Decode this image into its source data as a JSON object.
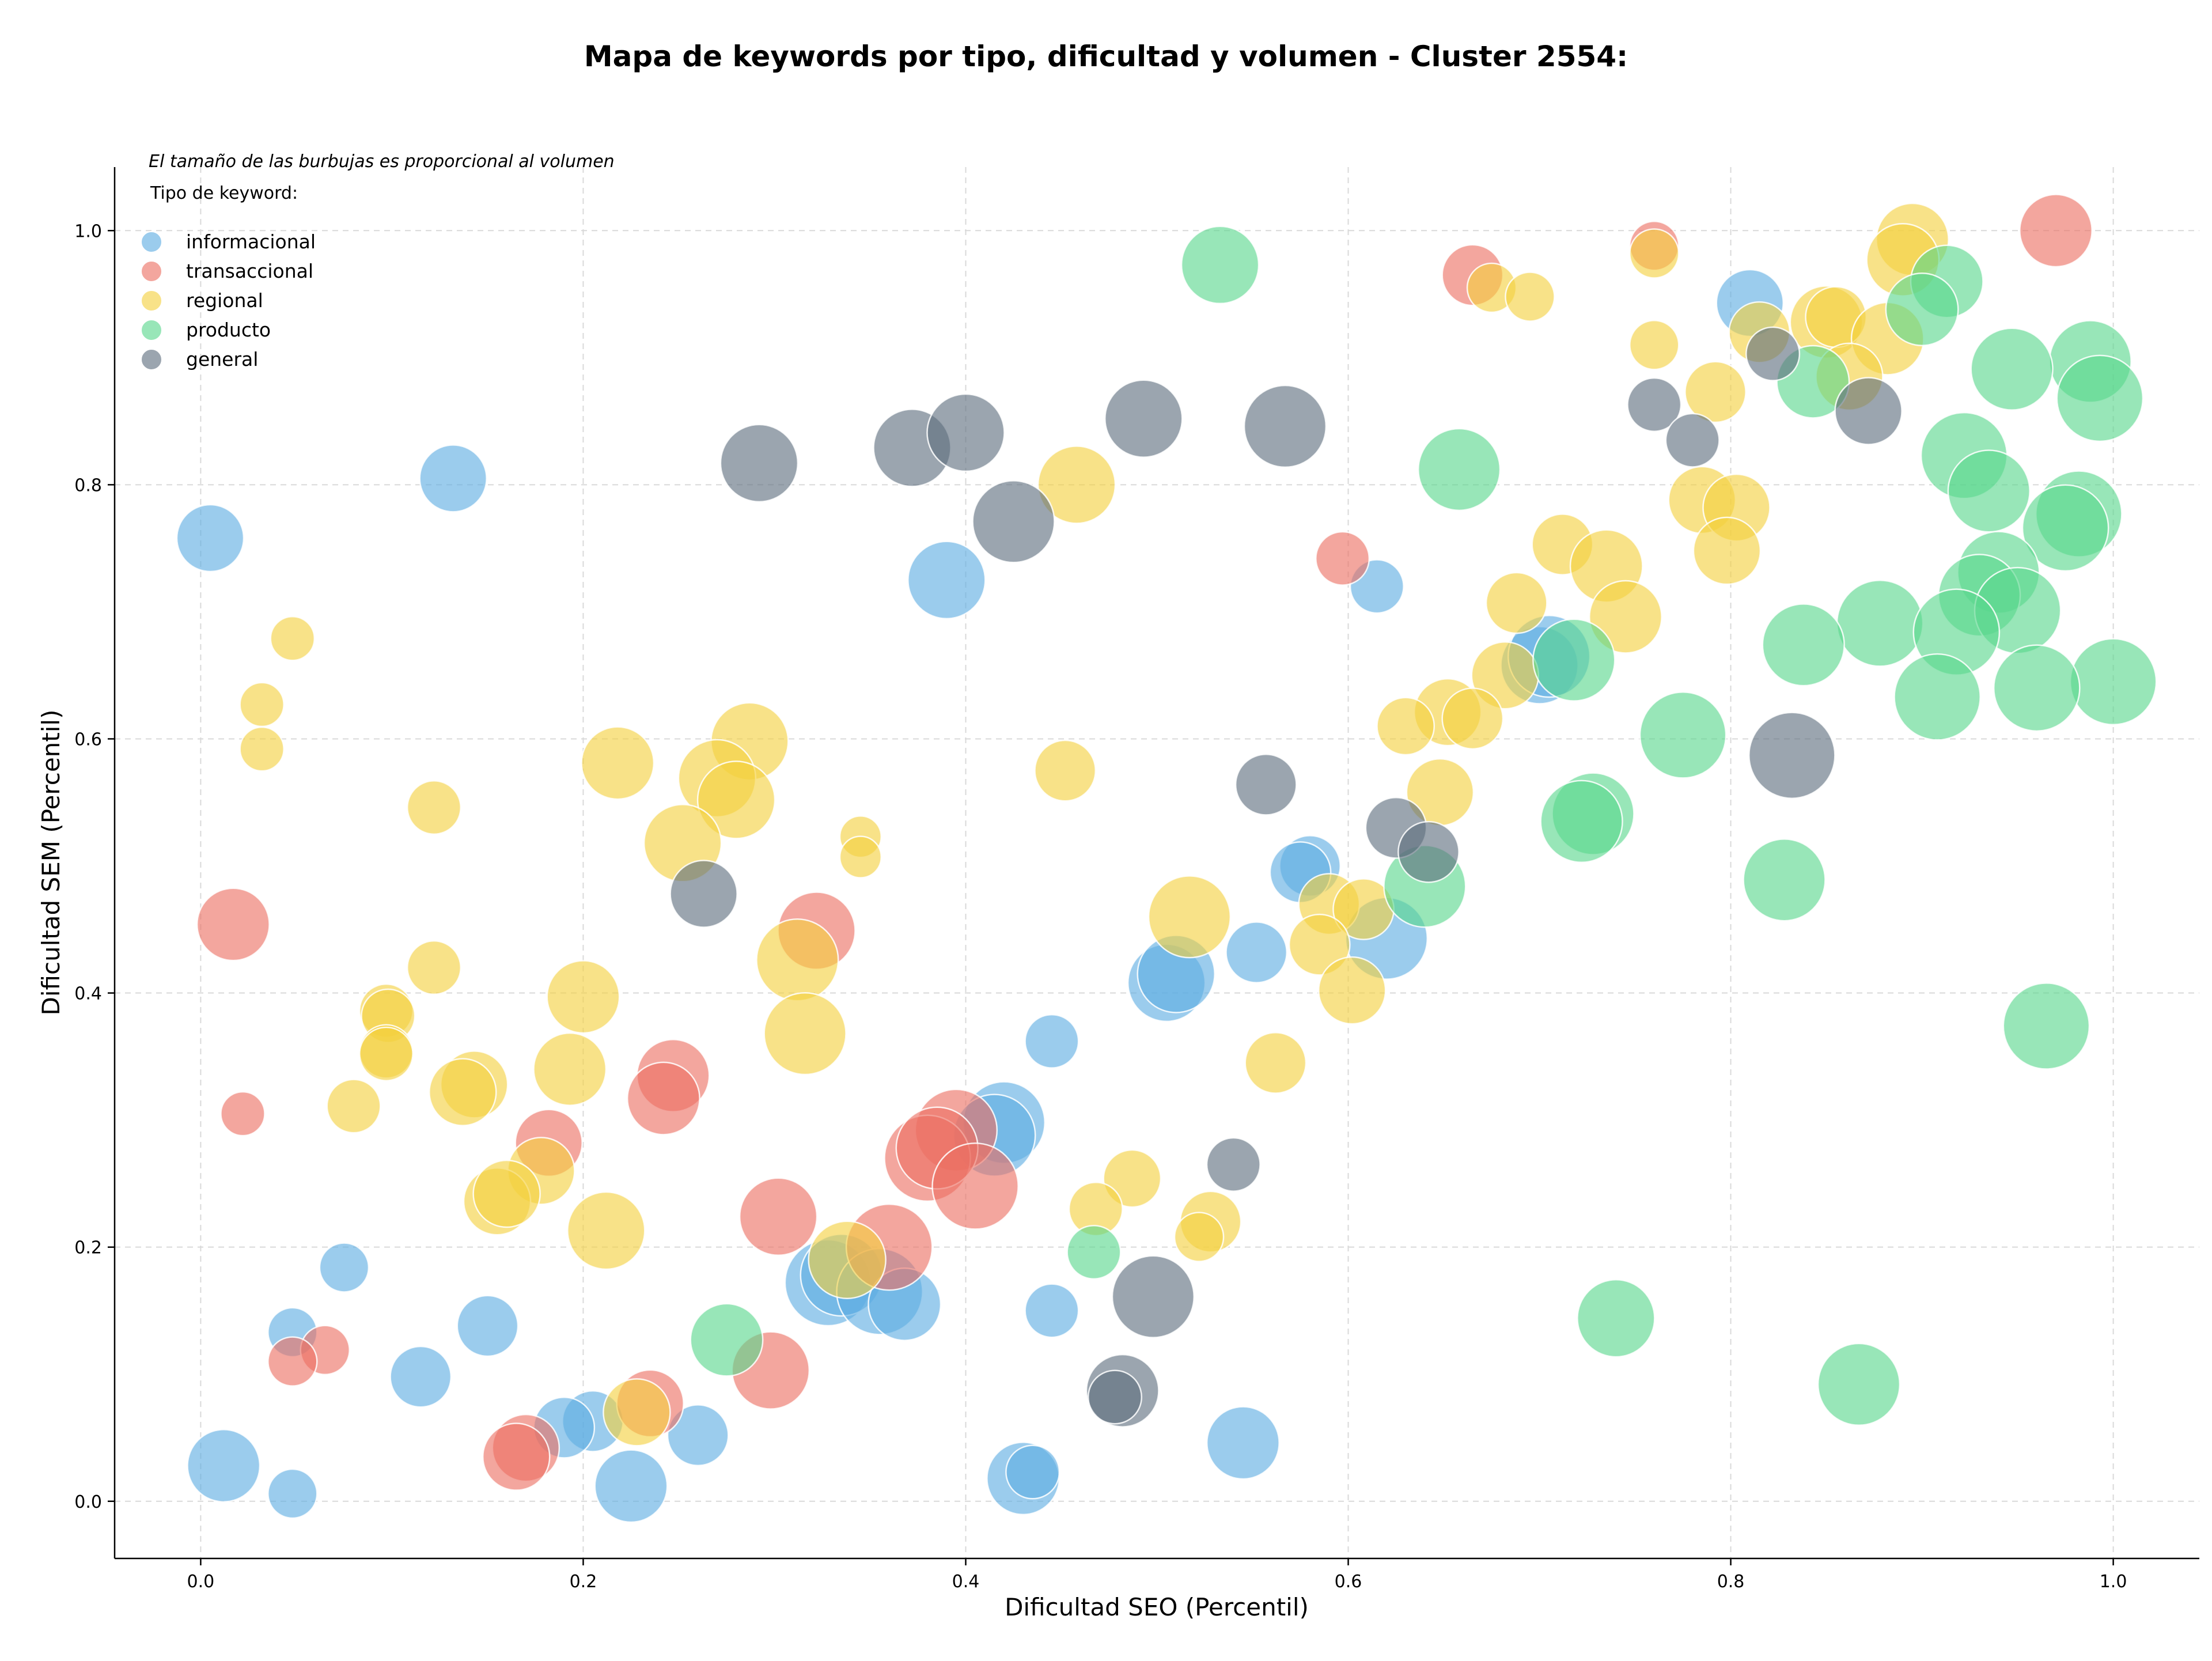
{
  "chart_data": {
    "type": "scatter",
    "title": "Mapa de keywords por tipo, dificultad y volumen - Cluster 2554:",
    "xlabel": "Dificultad SEO (Percentil)",
    "ylabel": "Dificultad SEM (Percentil)",
    "xlim": [
      -0.045,
      1.045
    ],
    "ylim": [
      -0.045,
      1.05
    ],
    "xticks": [
      0.0,
      0.2,
      0.4,
      0.6,
      0.8,
      1.0
    ],
    "yticks": [
      0.0,
      0.2,
      0.4,
      0.6,
      0.8,
      1.0
    ],
    "xtick_labels": [
      "0.0",
      "0.2",
      "0.4",
      "0.6",
      "0.8",
      "1.0"
    ],
    "ytick_labels": [
      "0.0",
      "0.2",
      "0.4",
      "0.6",
      "0.8",
      "1.0"
    ],
    "grid": true,
    "annotation": "El tamaño de las burbujas es proporcional al volumen",
    "legend_title": "Tipo de keyword:",
    "legend_position": "top-left",
    "size_encoding": "volume (relative 1-10)",
    "series": [
      {
        "name": "informacional",
        "color": "#5DADE2",
        "points": [
          {
            "x": 0.005,
            "y": 0.758,
            "s": 4
          },
          {
            "x": 0.132,
            "y": 0.805,
            "s": 4
          },
          {
            "x": 0.39,
            "y": 0.725,
            "s": 6
          },
          {
            "x": 0.615,
            "y": 0.72,
            "s": 2
          },
          {
            "x": 0.81,
            "y": 0.943,
            "s": 4
          },
          {
            "x": 0.7,
            "y": 0.658,
            "s": 6
          },
          {
            "x": 0.705,
            "y": 0.665,
            "s": 7
          },
          {
            "x": 0.58,
            "y": 0.5,
            "s": 3
          },
          {
            "x": 0.575,
            "y": 0.495,
            "s": 3
          },
          {
            "x": 0.62,
            "y": 0.443,
            "s": 7
          },
          {
            "x": 0.552,
            "y": 0.432,
            "s": 3
          },
          {
            "x": 0.505,
            "y": 0.408,
            "s": 6
          },
          {
            "x": 0.51,
            "y": 0.415,
            "s": 6
          },
          {
            "x": 0.445,
            "y": 0.362,
            "s": 2
          },
          {
            "x": 0.42,
            "y": 0.298,
            "s": 7
          },
          {
            "x": 0.415,
            "y": 0.288,
            "s": 7
          },
          {
            "x": 0.328,
            "y": 0.172,
            "s": 8
          },
          {
            "x": 0.335,
            "y": 0.178,
            "s": 7
          },
          {
            "x": 0.355,
            "y": 0.165,
            "s": 8
          },
          {
            "x": 0.368,
            "y": 0.155,
            "s": 5
          },
          {
            "x": 0.445,
            "y": 0.15,
            "s": 2
          },
          {
            "x": 0.545,
            "y": 0.046,
            "s": 5
          },
          {
            "x": 0.43,
            "y": 0.018,
            "s": 5
          },
          {
            "x": 0.435,
            "y": 0.023,
            "s": 2
          },
          {
            "x": 0.225,
            "y": 0.012,
            "s": 5
          },
          {
            "x": 0.26,
            "y": 0.052,
            "s": 3
          },
          {
            "x": 0.205,
            "y": 0.063,
            "s": 3
          },
          {
            "x": 0.19,
            "y": 0.058,
            "s": 3
          },
          {
            "x": 0.15,
            "y": 0.138,
            "s": 3
          },
          {
            "x": 0.115,
            "y": 0.098,
            "s": 3
          },
          {
            "x": 0.075,
            "y": 0.184,
            "s": 1.5
          },
          {
            "x": 0.048,
            "y": 0.133,
            "s": 1.5
          },
          {
            "x": 0.048,
            "y": 0.006,
            "s": 1.5
          },
          {
            "x": 0.012,
            "y": 0.028,
            "s": 5
          }
        ]
      },
      {
        "name": "transaccional",
        "color": "#EC7063",
        "points": [
          {
            "x": 0.97,
            "y": 1.0,
            "s": 5
          },
          {
            "x": 0.76,
            "y": 0.988,
            "s": 1.5
          },
          {
            "x": 0.665,
            "y": 0.965,
            "s": 3
          },
          {
            "x": 0.597,
            "y": 0.742,
            "s": 2
          },
          {
            "x": 0.017,
            "y": 0.454,
            "s": 5
          },
          {
            "x": 0.022,
            "y": 0.305,
            "s": 1
          },
          {
            "x": 0.322,
            "y": 0.449,
            "s": 6
          },
          {
            "x": 0.247,
            "y": 0.335,
            "s": 5
          },
          {
            "x": 0.242,
            "y": 0.317,
            "s": 5
          },
          {
            "x": 0.182,
            "y": 0.282,
            "s": 4
          },
          {
            "x": 0.395,
            "y": 0.292,
            "s": 7
          },
          {
            "x": 0.38,
            "y": 0.27,
            "s": 8
          },
          {
            "x": 0.385,
            "y": 0.278,
            "s": 7
          },
          {
            "x": 0.405,
            "y": 0.248,
            "s": 8
          },
          {
            "x": 0.302,
            "y": 0.224,
            "s": 6
          },
          {
            "x": 0.36,
            "y": 0.2,
            "s": 8
          },
          {
            "x": 0.298,
            "y": 0.103,
            "s": 6
          },
          {
            "x": 0.235,
            "y": 0.077,
            "s": 4
          },
          {
            "x": 0.17,
            "y": 0.042,
            "s": 4
          },
          {
            "x": 0.165,
            "y": 0.035,
            "s": 4
          },
          {
            "x": 0.065,
            "y": 0.119,
            "s": 1.5
          },
          {
            "x": 0.048,
            "y": 0.11,
            "s": 1.5
          }
        ]
      },
      {
        "name": "regional",
        "color": "#F4D03F",
        "points": [
          {
            "x": 0.895,
            "y": 0.993,
            "s": 5
          },
          {
            "x": 0.89,
            "y": 0.977,
            "s": 5
          },
          {
            "x": 0.76,
            "y": 0.982,
            "s": 1.5
          },
          {
            "x": 0.675,
            "y": 0.955,
            "s": 1.5
          },
          {
            "x": 0.695,
            "y": 0.948,
            "s": 1.5
          },
          {
            "x": 0.85,
            "y": 0.928,
            "s": 5
          },
          {
            "x": 0.855,
            "y": 0.932,
            "s": 3
          },
          {
            "x": 0.76,
            "y": 0.91,
            "s": 1.5
          },
          {
            "x": 0.815,
            "y": 0.92,
            "s": 3
          },
          {
            "x": 0.882,
            "y": 0.915,
            "s": 5
          },
          {
            "x": 0.862,
            "y": 0.885,
            "s": 4
          },
          {
            "x": 0.792,
            "y": 0.873,
            "s": 3
          },
          {
            "x": 0.785,
            "y": 0.788,
            "s": 4
          },
          {
            "x": 0.803,
            "y": 0.782,
            "s": 4
          },
          {
            "x": 0.798,
            "y": 0.748,
            "s": 4
          },
          {
            "x": 0.712,
            "y": 0.753,
            "s": 3
          },
          {
            "x": 0.735,
            "y": 0.736,
            "s": 5
          },
          {
            "x": 0.688,
            "y": 0.707,
            "s": 3
          },
          {
            "x": 0.745,
            "y": 0.696,
            "s": 5
          },
          {
            "x": 0.682,
            "y": 0.65,
            "s": 4
          },
          {
            "x": 0.652,
            "y": 0.621,
            "s": 4
          },
          {
            "x": 0.665,
            "y": 0.616,
            "s": 3
          },
          {
            "x": 0.63,
            "y": 0.61,
            "s": 2.5
          },
          {
            "x": 0.648,
            "y": 0.558,
            "s": 4
          },
          {
            "x": 0.458,
            "y": 0.8,
            "s": 6
          },
          {
            "x": 0.452,
            "y": 0.575,
            "s": 3
          },
          {
            "x": 0.048,
            "y": 0.679,
            "s": 1
          },
          {
            "x": 0.032,
            "y": 0.627,
            "s": 1
          },
          {
            "x": 0.032,
            "y": 0.592,
            "s": 1
          },
          {
            "x": 0.122,
            "y": 0.546,
            "s": 2
          },
          {
            "x": 0.218,
            "y": 0.581,
            "s": 5
          },
          {
            "x": 0.287,
            "y": 0.598,
            "s": 6
          },
          {
            "x": 0.27,
            "y": 0.569,
            "s": 6
          },
          {
            "x": 0.28,
            "y": 0.552,
            "s": 6
          },
          {
            "x": 0.252,
            "y": 0.518,
            "s": 6
          },
          {
            "x": 0.345,
            "y": 0.523,
            "s": 0.8
          },
          {
            "x": 0.345,
            "y": 0.507,
            "s": 0.8
          },
          {
            "x": 0.517,
            "y": 0.46,
            "s": 7
          },
          {
            "x": 0.59,
            "y": 0.47,
            "s": 3
          },
          {
            "x": 0.608,
            "y": 0.466,
            "s": 3
          },
          {
            "x": 0.585,
            "y": 0.438,
            "s": 3
          },
          {
            "x": 0.602,
            "y": 0.402,
            "s": 4
          },
          {
            "x": 0.312,
            "y": 0.426,
            "s": 7
          },
          {
            "x": 0.316,
            "y": 0.368,
            "s": 7
          },
          {
            "x": 0.2,
            "y": 0.397,
            "s": 5
          },
          {
            "x": 0.122,
            "y": 0.42,
            "s": 2
          },
          {
            "x": 0.097,
            "y": 0.386,
            "s": 2
          },
          {
            "x": 0.098,
            "y": 0.382,
            "s": 2
          },
          {
            "x": 0.097,
            "y": 0.354,
            "s": 2
          },
          {
            "x": 0.097,
            "y": 0.352,
            "s": 2
          },
          {
            "x": 0.193,
            "y": 0.34,
            "s": 5
          },
          {
            "x": 0.143,
            "y": 0.328,
            "s": 4
          },
          {
            "x": 0.137,
            "y": 0.322,
            "s": 4
          },
          {
            "x": 0.08,
            "y": 0.311,
            "s": 2
          },
          {
            "x": 0.178,
            "y": 0.26,
            "s": 4
          },
          {
            "x": 0.155,
            "y": 0.236,
            "s": 4
          },
          {
            "x": 0.16,
            "y": 0.242,
            "s": 4
          },
          {
            "x": 0.212,
            "y": 0.213,
            "s": 6
          },
          {
            "x": 0.562,
            "y": 0.345,
            "s": 3
          },
          {
            "x": 0.487,
            "y": 0.254,
            "s": 2.5
          },
          {
            "x": 0.468,
            "y": 0.23,
            "s": 2
          },
          {
            "x": 0.528,
            "y": 0.22,
            "s": 3
          },
          {
            "x": 0.522,
            "y": 0.208,
            "s": 1.5
          },
          {
            "x": 0.338,
            "y": 0.19,
            "s": 6
          },
          {
            "x": 0.228,
            "y": 0.07,
            "s": 4
          }
        ]
      },
      {
        "name": "producto",
        "color": "#58D68D",
        "points": [
          {
            "x": 0.533,
            "y": 0.973,
            "s": 6
          },
          {
            "x": 0.913,
            "y": 0.96,
            "s": 5
          },
          {
            "x": 0.9,
            "y": 0.938,
            "s": 5
          },
          {
            "x": 0.988,
            "y": 0.897,
            "s": 7
          },
          {
            "x": 0.947,
            "y": 0.891,
            "s": 7
          },
          {
            "x": 0.843,
            "y": 0.881,
            "s": 5
          },
          {
            "x": 0.993,
            "y": 0.868,
            "s": 8
          },
          {
            "x": 0.922,
            "y": 0.823,
            "s": 8
          },
          {
            "x": 0.658,
            "y": 0.812,
            "s": 7
          },
          {
            "x": 0.935,
            "y": 0.795,
            "s": 7
          },
          {
            "x": 0.982,
            "y": 0.777,
            "s": 8
          },
          {
            "x": 0.975,
            "y": 0.766,
            "s": 8
          },
          {
            "x": 0.94,
            "y": 0.731,
            "s": 7
          },
          {
            "x": 0.93,
            "y": 0.713,
            "s": 7
          },
          {
            "x": 0.95,
            "y": 0.701,
            "s": 8
          },
          {
            "x": 0.878,
            "y": 0.691,
            "s": 8
          },
          {
            "x": 0.918,
            "y": 0.684,
            "s": 8
          },
          {
            "x": 0.838,
            "y": 0.674,
            "s": 7
          },
          {
            "x": 0.718,
            "y": 0.662,
            "s": 7
          },
          {
            "x": 1.0,
            "y": 0.645,
            "s": 8
          },
          {
            "x": 0.96,
            "y": 0.64,
            "s": 8
          },
          {
            "x": 0.908,
            "y": 0.633,
            "s": 8
          },
          {
            "x": 0.775,
            "y": 0.603,
            "s": 8
          },
          {
            "x": 0.728,
            "y": 0.541,
            "s": 7
          },
          {
            "x": 0.722,
            "y": 0.535,
            "s": 7
          },
          {
            "x": 0.64,
            "y": 0.484,
            "s": 7
          },
          {
            "x": 0.828,
            "y": 0.489,
            "s": 7
          },
          {
            "x": 0.965,
            "y": 0.374,
            "s": 8
          },
          {
            "x": 0.467,
            "y": 0.196,
            "s": 2
          },
          {
            "x": 0.275,
            "y": 0.127,
            "s": 5
          },
          {
            "x": 0.74,
            "y": 0.144,
            "s": 6
          },
          {
            "x": 0.867,
            "y": 0.092,
            "s": 7
          }
        ]
      },
      {
        "name": "general",
        "color": "#5D6D7E",
        "points": [
          {
            "x": 0.292,
            "y": 0.817,
            "s": 6
          },
          {
            "x": 0.372,
            "y": 0.829,
            "s": 6
          },
          {
            "x": 0.4,
            "y": 0.841,
            "s": 6
          },
          {
            "x": 0.493,
            "y": 0.852,
            "s": 6
          },
          {
            "x": 0.567,
            "y": 0.846,
            "s": 7
          },
          {
            "x": 0.425,
            "y": 0.771,
            "s": 7
          },
          {
            "x": 0.76,
            "y": 0.863,
            "s": 2
          },
          {
            "x": 0.78,
            "y": 0.835,
            "s": 2
          },
          {
            "x": 0.822,
            "y": 0.903,
            "s": 2
          },
          {
            "x": 0.872,
            "y": 0.858,
            "s": 4
          },
          {
            "x": 0.832,
            "y": 0.587,
            "s": 8
          },
          {
            "x": 0.557,
            "y": 0.564,
            "s": 3
          },
          {
            "x": 0.625,
            "y": 0.53,
            "s": 3
          },
          {
            "x": 0.642,
            "y": 0.511,
            "s": 3
          },
          {
            "x": 0.263,
            "y": 0.478,
            "s": 4
          },
          {
            "x": 0.54,
            "y": 0.265,
            "s": 2
          },
          {
            "x": 0.498,
            "y": 0.161,
            "s": 7
          },
          {
            "x": 0.482,
            "y": 0.087,
            "s": 5
          },
          {
            "x": 0.478,
            "y": 0.082,
            "s": 2
          }
        ]
      }
    ]
  }
}
